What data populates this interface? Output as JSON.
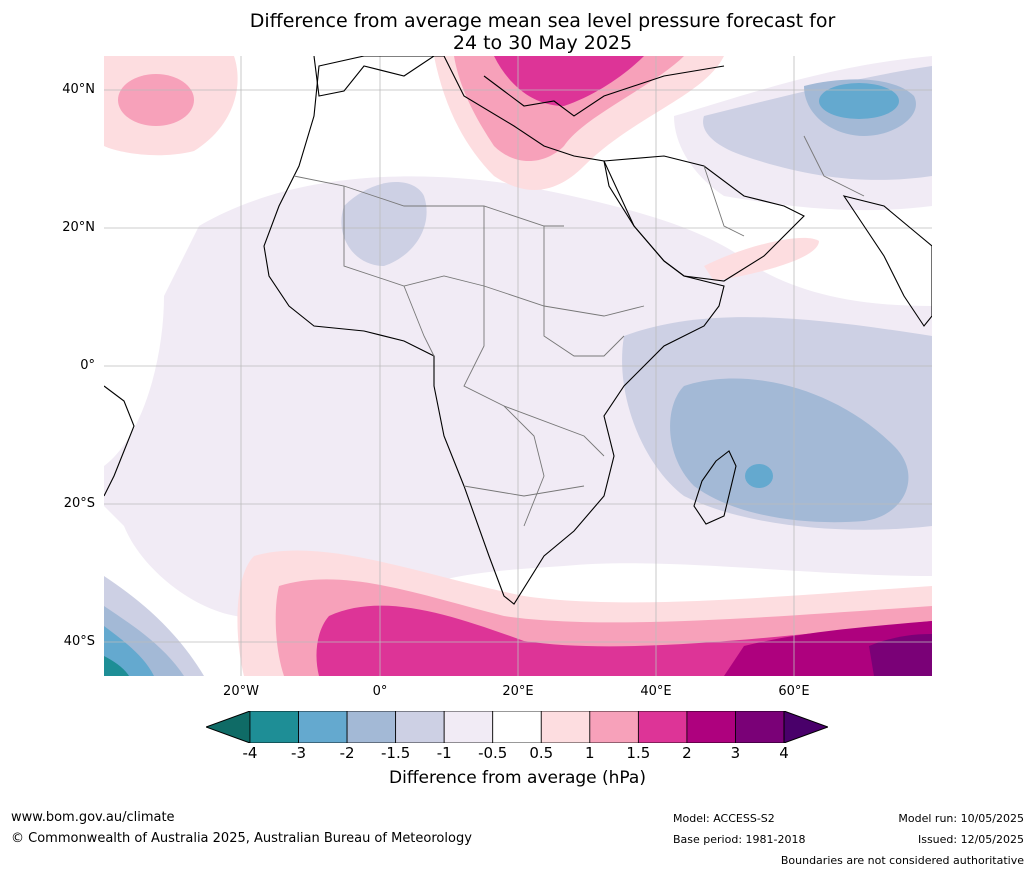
{
  "title_line1": "Difference from average mean sea level pressure forecast for",
  "title_line2": "24 to 30 May 2025",
  "lat_labels": [
    "40°N",
    "20°N",
    "0°",
    "20°S",
    "40°S"
  ],
  "lon_labels": [
    "20°W",
    "0°",
    "20°E",
    "40°E",
    "60°E"
  ],
  "colorbar": {
    "ticks": [
      "-4",
      "-3",
      "-2",
      "-1.5",
      "-1",
      "-0.5",
      "0.5",
      "1",
      "1.5",
      "2",
      "3",
      "4"
    ],
    "colors": [
      "#0f6b66",
      "#1e8e96",
      "#64a9cf",
      "#a3b9d6",
      "#cdd0e4",
      "#f1ebf5",
      "#ffffff",
      "#fddde0",
      "#f7a1ba",
      "#dd3497",
      "#ae017e",
      "#7a0177",
      "#49006a"
    ],
    "label": "Difference from average (hPa)"
  },
  "footer": {
    "url": "www.bom.gov.au/climate",
    "copyright": "© Commonwealth of Australia 2025, Australian Bureau of Meteorology",
    "model": "Model: ACCESS-S2",
    "base_period": "Base period: 1981-2018",
    "model_run": "Model run: 10/05/2025",
    "issued": "Issued: 12/05/2025",
    "boundaries_note": "Boundaries are not considered authoritative"
  }
}
